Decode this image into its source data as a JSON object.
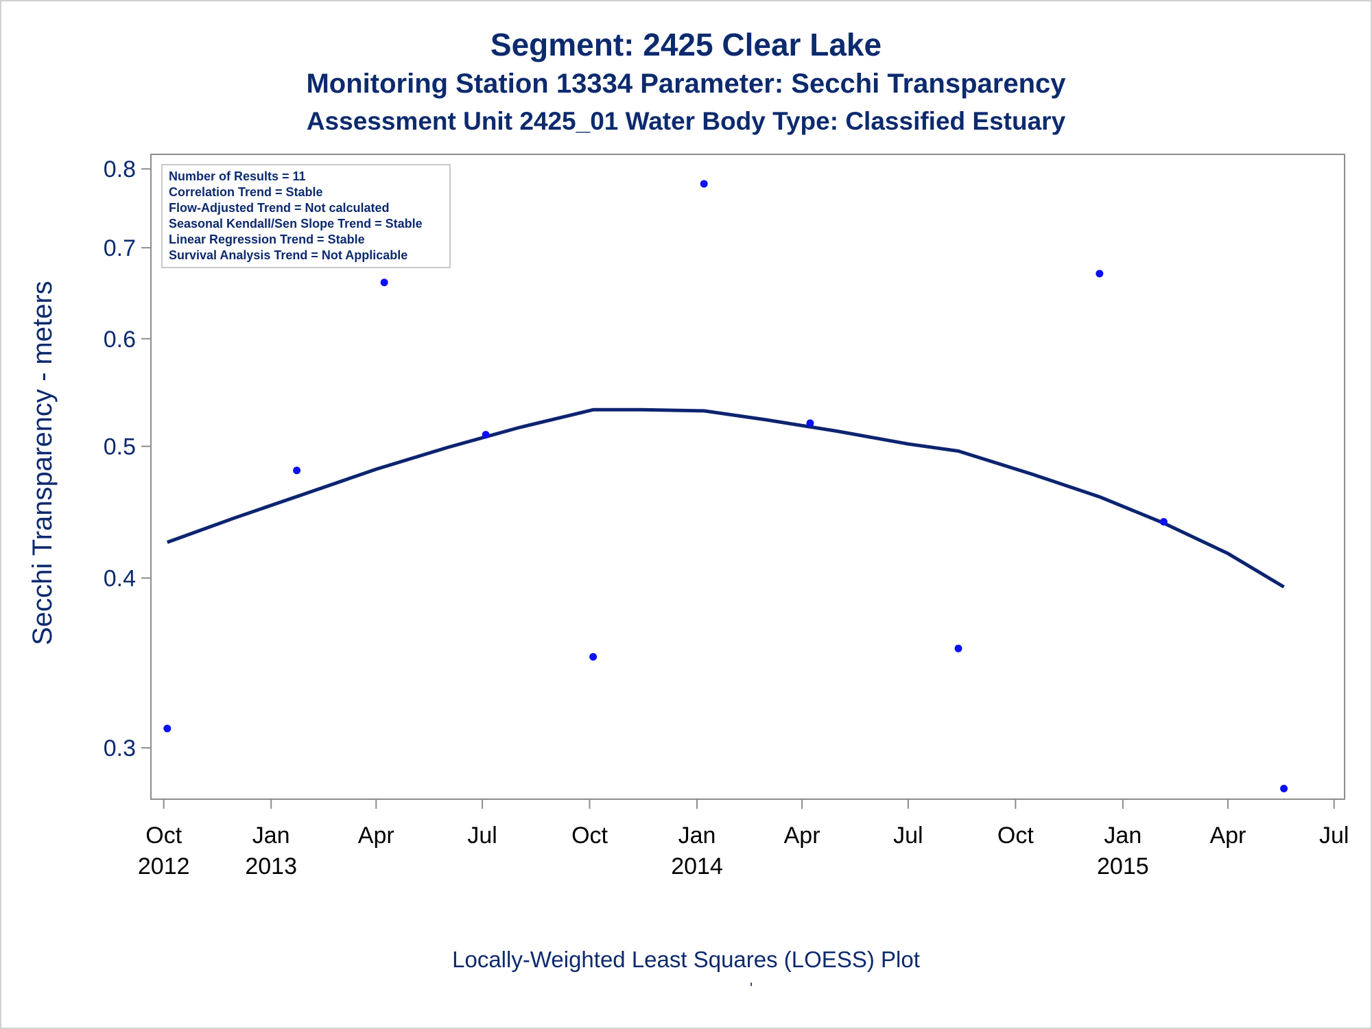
{
  "titles": {
    "line1": "Segment: 2425  Clear Lake",
    "line2": "Monitoring Station 13334 Parameter: Secchi Transparency",
    "line3": "Assessment Unit 2425_01   Water Body Type: Classified Estuary"
  },
  "footnote": "Locally-Weighted Least Squares (LOESS) Plot",
  "footnote_mark": "'",
  "colors": {
    "text": "#0c2a6e",
    "points": "#0a10f5",
    "loess": "#0c2470",
    "frame": "#8c8c8c"
  },
  "chart_data": {
    "type": "scatter",
    "ylabel": "Secchi Transparency - meters",
    "yscale": "log",
    "ylim": [
      0.275,
      0.82
    ],
    "xlim": [
      "2012-09-20",
      "2015-07-10"
    ],
    "yticks": [
      {
        "value": 0.3,
        "label": "0.3"
      },
      {
        "value": 0.4,
        "label": "0.4"
      },
      {
        "value": 0.5,
        "label": "0.5"
      },
      {
        "value": 0.6,
        "label": "0.6"
      },
      {
        "value": 0.7,
        "label": "0.7"
      },
      {
        "value": 0.8,
        "label": "0.8"
      }
    ],
    "xticks": [
      {
        "date": "2012-10-01",
        "month": "Oct",
        "year": "2012"
      },
      {
        "date": "2013-01-01",
        "month": "Jan",
        "year": "2013"
      },
      {
        "date": "2013-04-01",
        "month": "Apr",
        "year": ""
      },
      {
        "date": "2013-07-01",
        "month": "Jul",
        "year": ""
      },
      {
        "date": "2013-10-01",
        "month": "Oct",
        "year": ""
      },
      {
        "date": "2014-01-01",
        "month": "Jan",
        "year": "2014"
      },
      {
        "date": "2014-04-01",
        "month": "Apr",
        "year": ""
      },
      {
        "date": "2014-07-01",
        "month": "Jul",
        "year": ""
      },
      {
        "date": "2014-10-01",
        "month": "Oct",
        "year": ""
      },
      {
        "date": "2015-01-01",
        "month": "Jan",
        "year": "2015"
      },
      {
        "date": "2015-04-01",
        "month": "Apr",
        "year": ""
      },
      {
        "date": "2015-07-01",
        "month": "Jul",
        "year": ""
      }
    ],
    "series": [
      {
        "kind": "points",
        "points": [
          {
            "x": "2012-10-04",
            "y": 0.31
          },
          {
            "x": "2013-01-23",
            "y": 0.48
          },
          {
            "x": "2013-04-08",
            "y": 0.66
          },
          {
            "x": "2013-07-04",
            "y": 0.51
          },
          {
            "x": "2013-10-04",
            "y": 0.35
          },
          {
            "x": "2014-01-07",
            "y": 0.78
          },
          {
            "x": "2014-04-08",
            "y": 0.52
          },
          {
            "x": "2014-08-13",
            "y": 0.355
          },
          {
            "x": "2014-12-12",
            "y": 0.67
          },
          {
            "x": "2015-02-05",
            "y": 0.44
          },
          {
            "x": "2015-05-19",
            "y": 0.28
          }
        ]
      },
      {
        "kind": "loess",
        "points": [
          {
            "x": "2012-10-04",
            "y": 0.425
          },
          {
            "x": "2012-12-01",
            "y": 0.443
          },
          {
            "x": "2013-02-01",
            "y": 0.462
          },
          {
            "x": "2013-04-01",
            "y": 0.481
          },
          {
            "x": "2013-06-01",
            "y": 0.499
          },
          {
            "x": "2013-08-01",
            "y": 0.516
          },
          {
            "x": "2013-10-04",
            "y": 0.532
          },
          {
            "x": "2013-11-15",
            "y": 0.532
          },
          {
            "x": "2014-01-07",
            "y": 0.531
          },
          {
            "x": "2014-03-01",
            "y": 0.523
          },
          {
            "x": "2014-05-01",
            "y": 0.513
          },
          {
            "x": "2014-07-01",
            "y": 0.502
          },
          {
            "x": "2014-08-13",
            "y": 0.496
          },
          {
            "x": "2014-10-15",
            "y": 0.477
          },
          {
            "x": "2014-12-12",
            "y": 0.459
          },
          {
            "x": "2015-02-05",
            "y": 0.439
          },
          {
            "x": "2015-04-01",
            "y": 0.417
          },
          {
            "x": "2015-05-19",
            "y": 0.394
          }
        ]
      }
    ],
    "legend_box": {
      "placement": "top-left",
      "lines": [
        "Number of Results = 11",
        "Correlation Trend = Stable",
        "Flow-Adjusted Trend = Not calculated",
        "Seasonal Kendall/Sen Slope Trend = Stable",
        "Linear Regression Trend = Stable",
        "Survival Analysis Trend = Not Applicable"
      ]
    }
  }
}
